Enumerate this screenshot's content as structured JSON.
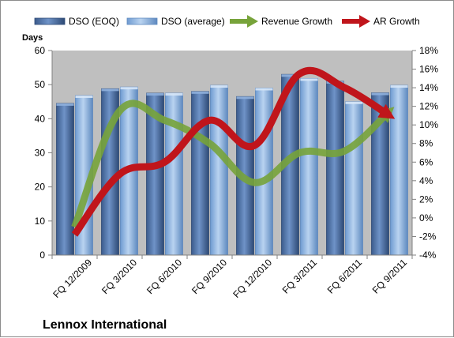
{
  "chart_data": {
    "type": "bar",
    "title": "",
    "company": "Lennox International",
    "ylabel": "Days",
    "ylim": [
      0,
      60
    ],
    "y_ticks": [
      "0",
      "10",
      "20",
      "30",
      "40",
      "50",
      "60"
    ],
    "y2lim": [
      -4,
      18
    ],
    "y2_ticks": [
      "-4%",
      "-2%",
      "0%",
      "2%",
      "4%",
      "6%",
      "8%",
      "10%",
      "12%",
      "14%",
      "16%",
      "18%"
    ],
    "categories": [
      "FQ 12/2009",
      "FQ 3/2010",
      "FQ 6/2010",
      "FQ 9/2010",
      "FQ 12/2010",
      "FQ 3/2011",
      "FQ 6/2011",
      "FQ 9/2011"
    ],
    "series": [
      {
        "name": "DSO (EOQ)",
        "kind": "bar",
        "axis": "left",
        "color": "#4a6fa5",
        "values": [
          44.5,
          48.8,
          47.5,
          48.0,
          46.5,
          53.0,
          51.0,
          47.6
        ]
      },
      {
        "name": "DSO (average)",
        "kind": "bar",
        "axis": "left",
        "color": "#8eb4e3",
        "values": [
          46.8,
          49.3,
          47.5,
          49.8,
          49.0,
          51.8,
          45.0,
          49.8
        ]
      },
      {
        "name": "Revenue Growth",
        "kind": "line-arrow",
        "axis": "right",
        "unit": "%",
        "color": "#77a33a",
        "values": [
          -1.0,
          11.5,
          10.5,
          8.0,
          3.8,
          7.0,
          7.2,
          11.5
        ]
      },
      {
        "name": "AR Growth",
        "kind": "line-arrow",
        "axis": "right",
        "unit": "%",
        "color": "#c0151b",
        "values": [
          -1.8,
          4.7,
          6.0,
          10.5,
          7.8,
          15.5,
          14.0,
          11.0
        ]
      }
    ],
    "legend_position": "top",
    "grid": false,
    "colors": {
      "plot_background": "#bfbfbf",
      "bar_dark": "#4a6fa5",
      "bar_light": "#8eb4e3",
      "revenue": "#77a33a",
      "ar": "#c0151b"
    }
  }
}
